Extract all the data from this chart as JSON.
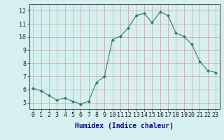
{
  "x": [
    0,
    1,
    2,
    3,
    4,
    5,
    6,
    7,
    8,
    9,
    10,
    11,
    12,
    13,
    14,
    15,
    16,
    17,
    18,
    19,
    20,
    21,
    22,
    23
  ],
  "y": [
    6.1,
    5.9,
    5.55,
    5.2,
    5.35,
    5.1,
    4.9,
    5.1,
    6.55,
    7.0,
    9.8,
    10.05,
    10.7,
    11.65,
    11.8,
    11.1,
    11.9,
    11.65,
    10.3,
    10.05,
    9.45,
    8.15,
    7.45,
    7.3
  ],
  "line_color": "#2e7d6e",
  "marker": "D",
  "marker_size": 2,
  "bg_color": "#d6f0f0",
  "grid_color": "#b8d8d8",
  "xlabel": "Humidex (Indice chaleur)",
  "xlabel_color": "#00008b",
  "xlim": [
    -0.5,
    23.5
  ],
  "ylim": [
    4.5,
    12.5
  ],
  "yticks": [
    5,
    6,
    7,
    8,
    9,
    10,
    11,
    12
  ],
  "xticks": [
    0,
    1,
    2,
    3,
    4,
    5,
    6,
    7,
    8,
    9,
    10,
    11,
    12,
    13,
    14,
    15,
    16,
    17,
    18,
    19,
    20,
    21,
    22,
    23
  ],
  "tick_fontsize": 6,
  "xlabel_fontsize": 7
}
